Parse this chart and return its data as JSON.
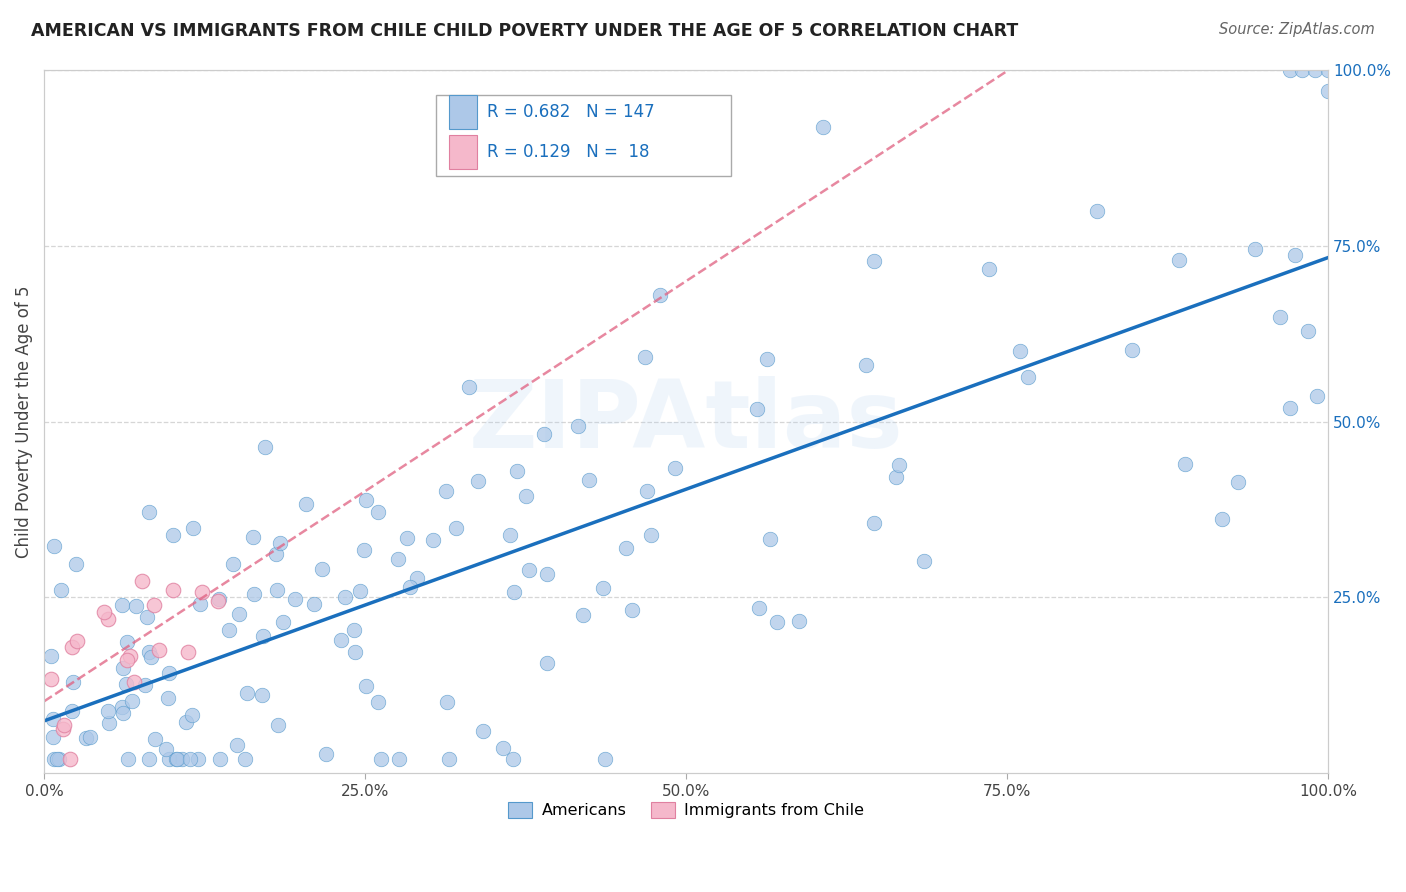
{
  "title": "AMERICAN VS IMMIGRANTS FROM CHILE CHILD POVERTY UNDER THE AGE OF 5 CORRELATION CHART",
  "source": "Source: ZipAtlas.com",
  "ylabel": "Child Poverty Under the Age of 5",
  "xlim": [
    0,
    1
  ],
  "ylim": [
    0,
    1
  ],
  "xtick_labels": [
    "0.0%",
    "25.0%",
    "50.0%",
    "75.0%",
    "100.0%"
  ],
  "xtick_vals": [
    0,
    0.25,
    0.5,
    0.75,
    1.0
  ],
  "ytick_labels_right": [
    "100.0%",
    "75.0%",
    "50.0%",
    "25.0%"
  ],
  "ytick_vals_right": [
    1.0,
    0.75,
    0.5,
    0.25
  ],
  "american_R": 0.682,
  "american_N": 147,
  "chile_R": 0.129,
  "chile_N": 18,
  "american_color": "#adc8e8",
  "american_edge_color": "#5599cc",
  "american_line_color": "#1a6fbd",
  "chile_color": "#f5b8cb",
  "chile_edge_color": "#e080a0",
  "chile_line_color": "#e06080",
  "watermark": "ZIPAtlas",
  "background_color": "#ffffff",
  "grid_color": "#cccccc",
  "title_color": "#222222",
  "source_color": "#666666",
  "right_tick_color": "#1a6fbd",
  "legend_border_color": "#aaaaaa"
}
